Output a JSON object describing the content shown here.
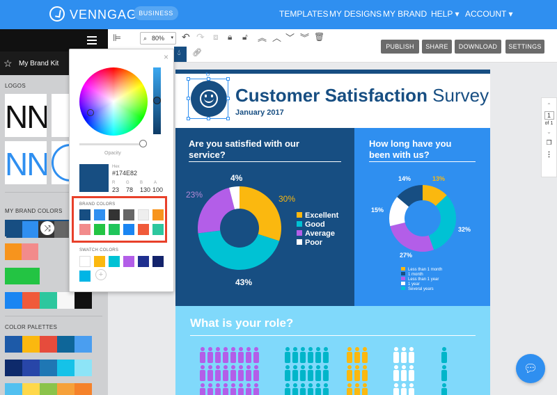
{
  "topnav": {
    "brand": "VENNGAGE",
    "badge": "BUSINESS",
    "links": [
      "TEMPLATES",
      "MY DESIGNS",
      "MY BRAND",
      "HELP ▾",
      "ACCOUNT ▾"
    ]
  },
  "sidebar": {
    "brandkit_label": "My Brand Kit",
    "logos_label": "LOGOS",
    "logo_text": "NN",
    "brand_colors_label": "MY BRAND COLORS",
    "shuffle_glyph": "⤨",
    "palettes_label": "COLOR PALETTES"
  },
  "toolbar": {
    "zoom": "80%",
    "publish": "PUBLISH",
    "share": "SHARE",
    "download": "DOWNLOAD",
    "settings": "SETTINGS"
  },
  "pager": {
    "page": "1",
    "of": "of 1"
  },
  "picker": {
    "close": "×",
    "opacity_label": "Opacity",
    "hex_label": "Hex",
    "hex_value": "#174E82",
    "channels": [
      {
        "label": "R",
        "value": "23"
      },
      {
        "label": "G",
        "value": "78"
      },
      {
        "label": "B",
        "value": "130"
      },
      {
        "label": "A",
        "value": "100"
      }
    ],
    "brand_colors_label": "BRAND COLORS",
    "swatch_colors_label": "SWATCH COLORS",
    "brand_colors": [
      "#174e82",
      "#2f8ff0",
      "#333333",
      "#666666",
      "#eeeeee",
      "#f7941d",
      "#f28b8b",
      "#23c443",
      "#1fc55a",
      "#1a85f2",
      "#f05a3a",
      "#2dc79e"
    ],
    "swatch_colors": [
      "#ffffff",
      "#fbb80f",
      "#00c2d4",
      "#b35ee8",
      "#1f2f8f",
      "#13236b",
      "#00b5e5"
    ],
    "add_glyph": "+"
  },
  "document": {
    "title_bold": "Customer Satisfaction",
    "title_light": " Survey",
    "date": "January 2017",
    "q1": "Are you satisfied with our service?",
    "q2": "How long have you been with us?",
    "q3": "What is your role?",
    "legend1": [
      "Excellent",
      "Good",
      "Average",
      "Poor"
    ],
    "legend2": [
      "Less than 1 month",
      "1 month",
      "Less than 1 year",
      "1 year",
      "Several years"
    ]
  },
  "chart_data": [
    {
      "type": "pie",
      "title": "Are you satisfied with our service?",
      "categories": [
        "Excellent",
        "Good",
        "Average",
        "Poor"
      ],
      "values": [
        30,
        43,
        23,
        4
      ],
      "colors": [
        "#fbb80f",
        "#00c2d4",
        "#b35ee8",
        "#ffffff"
      ]
    },
    {
      "type": "pie",
      "title": "How long have you been with us?",
      "categories": [
        "Less than 1 month",
        "Several years",
        "Less than 1 year",
        "1 year",
        "1 month"
      ],
      "values": [
        13,
        32,
        27,
        15,
        14
      ],
      "colors": [
        "#fbb80f",
        "#00c2d4",
        "#b35ee8",
        "#ffffff",
        "#174e82"
      ]
    }
  ]
}
